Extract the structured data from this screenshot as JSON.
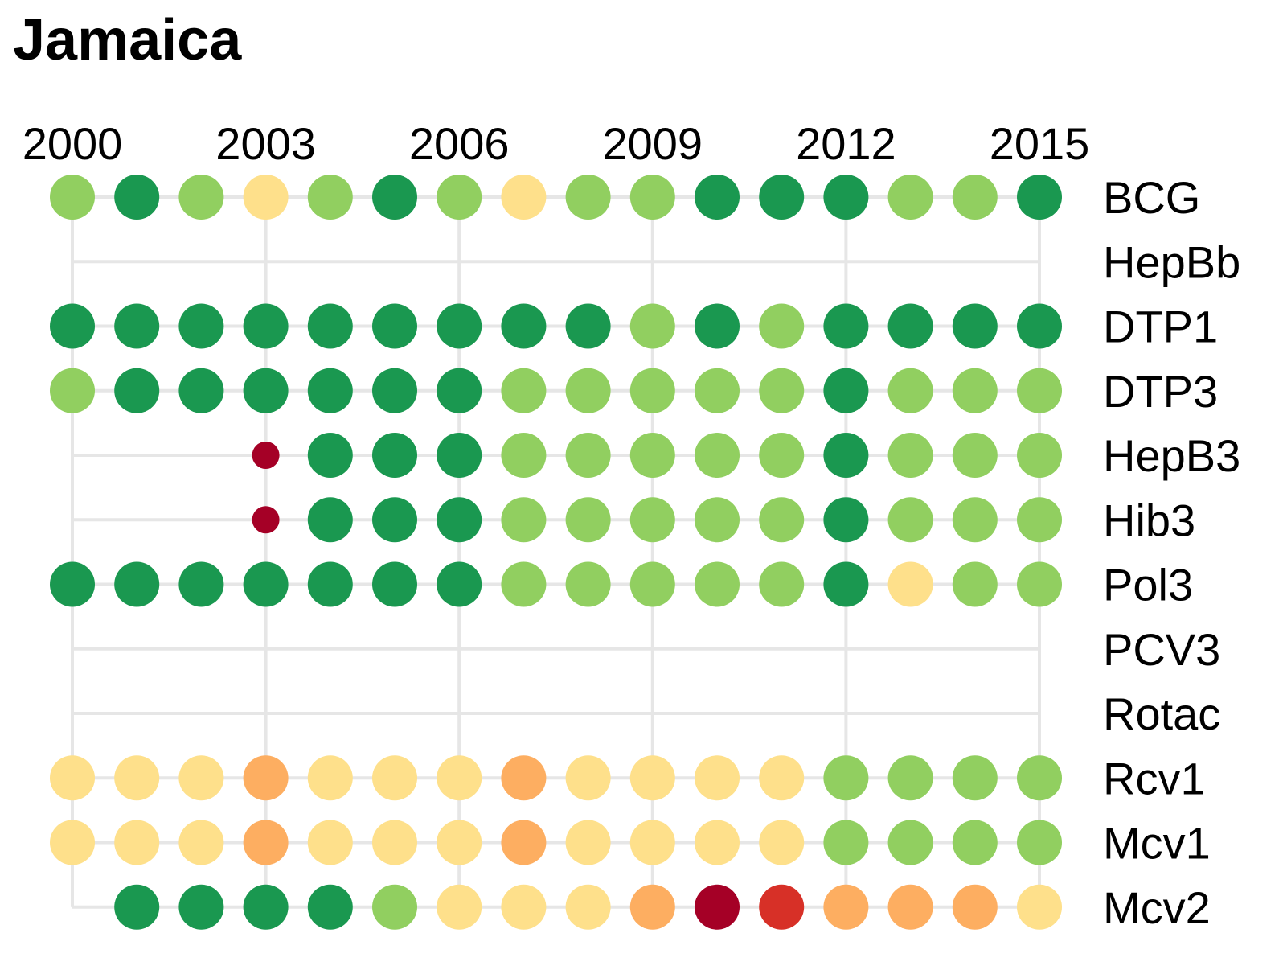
{
  "chart_data": {
    "type": "dot-matrix",
    "title": "Jamaica",
    "x_ticks": [
      "2000",
      "2003",
      "2006",
      "2009",
      "2012",
      "2015"
    ],
    "years": [
      2000,
      2001,
      2002,
      2003,
      2004,
      2005,
      2006,
      2007,
      2008,
      2009,
      2010,
      2011,
      2012,
      2013,
      2014,
      2015
    ],
    "colors": {
      "5": "#1a9850",
      "4": "#91cf60",
      "3": "#fee08b",
      "2": "#fdae61",
      "1": "#d73027",
      "0": "#a50026"
    },
    "rows": [
      {
        "name": "BCG",
        "levels": [
          4,
          5,
          4,
          3,
          4,
          5,
          4,
          3,
          4,
          4,
          5,
          5,
          5,
          4,
          4,
          5
        ]
      },
      {
        "name": "HepBb",
        "levels": [
          null,
          null,
          null,
          null,
          null,
          null,
          null,
          null,
          null,
          null,
          null,
          null,
          null,
          null,
          null,
          null
        ]
      },
      {
        "name": "DTP1",
        "levels": [
          5,
          5,
          5,
          5,
          5,
          5,
          5,
          5,
          5,
          4,
          5,
          4,
          5,
          5,
          5,
          5
        ]
      },
      {
        "name": "DTP3",
        "levels": [
          4,
          5,
          5,
          5,
          5,
          5,
          5,
          4,
          4,
          4,
          4,
          4,
          5,
          4,
          4,
          4
        ]
      },
      {
        "name": "HepB3",
        "levels": [
          null,
          null,
          null,
          0,
          5,
          5,
          5,
          4,
          4,
          4,
          4,
          4,
          5,
          4,
          4,
          4
        ]
      },
      {
        "name": "Hib3",
        "levels": [
          null,
          null,
          null,
          0,
          5,
          5,
          5,
          4,
          4,
          4,
          4,
          4,
          5,
          4,
          4,
          4
        ]
      },
      {
        "name": "Pol3",
        "levels": [
          5,
          5,
          5,
          5,
          5,
          5,
          5,
          4,
          4,
          4,
          4,
          4,
          5,
          3,
          4,
          4
        ]
      },
      {
        "name": "PCV3",
        "levels": [
          null,
          null,
          null,
          null,
          null,
          null,
          null,
          null,
          null,
          null,
          null,
          null,
          null,
          null,
          null,
          null
        ]
      },
      {
        "name": "Rotac",
        "levels": [
          null,
          null,
          null,
          null,
          null,
          null,
          null,
          null,
          null,
          null,
          null,
          null,
          null,
          null,
          null,
          null
        ]
      },
      {
        "name": "Rcv1",
        "levels": [
          3,
          3,
          3,
          2,
          3,
          3,
          3,
          2,
          3,
          3,
          3,
          3,
          4,
          4,
          4,
          4
        ]
      },
      {
        "name": "Mcv1",
        "levels": [
          3,
          3,
          3,
          2,
          3,
          3,
          3,
          2,
          3,
          3,
          3,
          3,
          4,
          4,
          4,
          4
        ]
      },
      {
        "name": "Mcv2",
        "levels": [
          null,
          5,
          5,
          5,
          5,
          4,
          3,
          3,
          3,
          2,
          0,
          1,
          2,
          2,
          2,
          3
        ]
      }
    ],
    "small_dot_years": {
      "HepB3": [
        2003
      ],
      "Hib3": [
        2003
      ]
    },
    "grid_color": "#e6e6e6"
  }
}
